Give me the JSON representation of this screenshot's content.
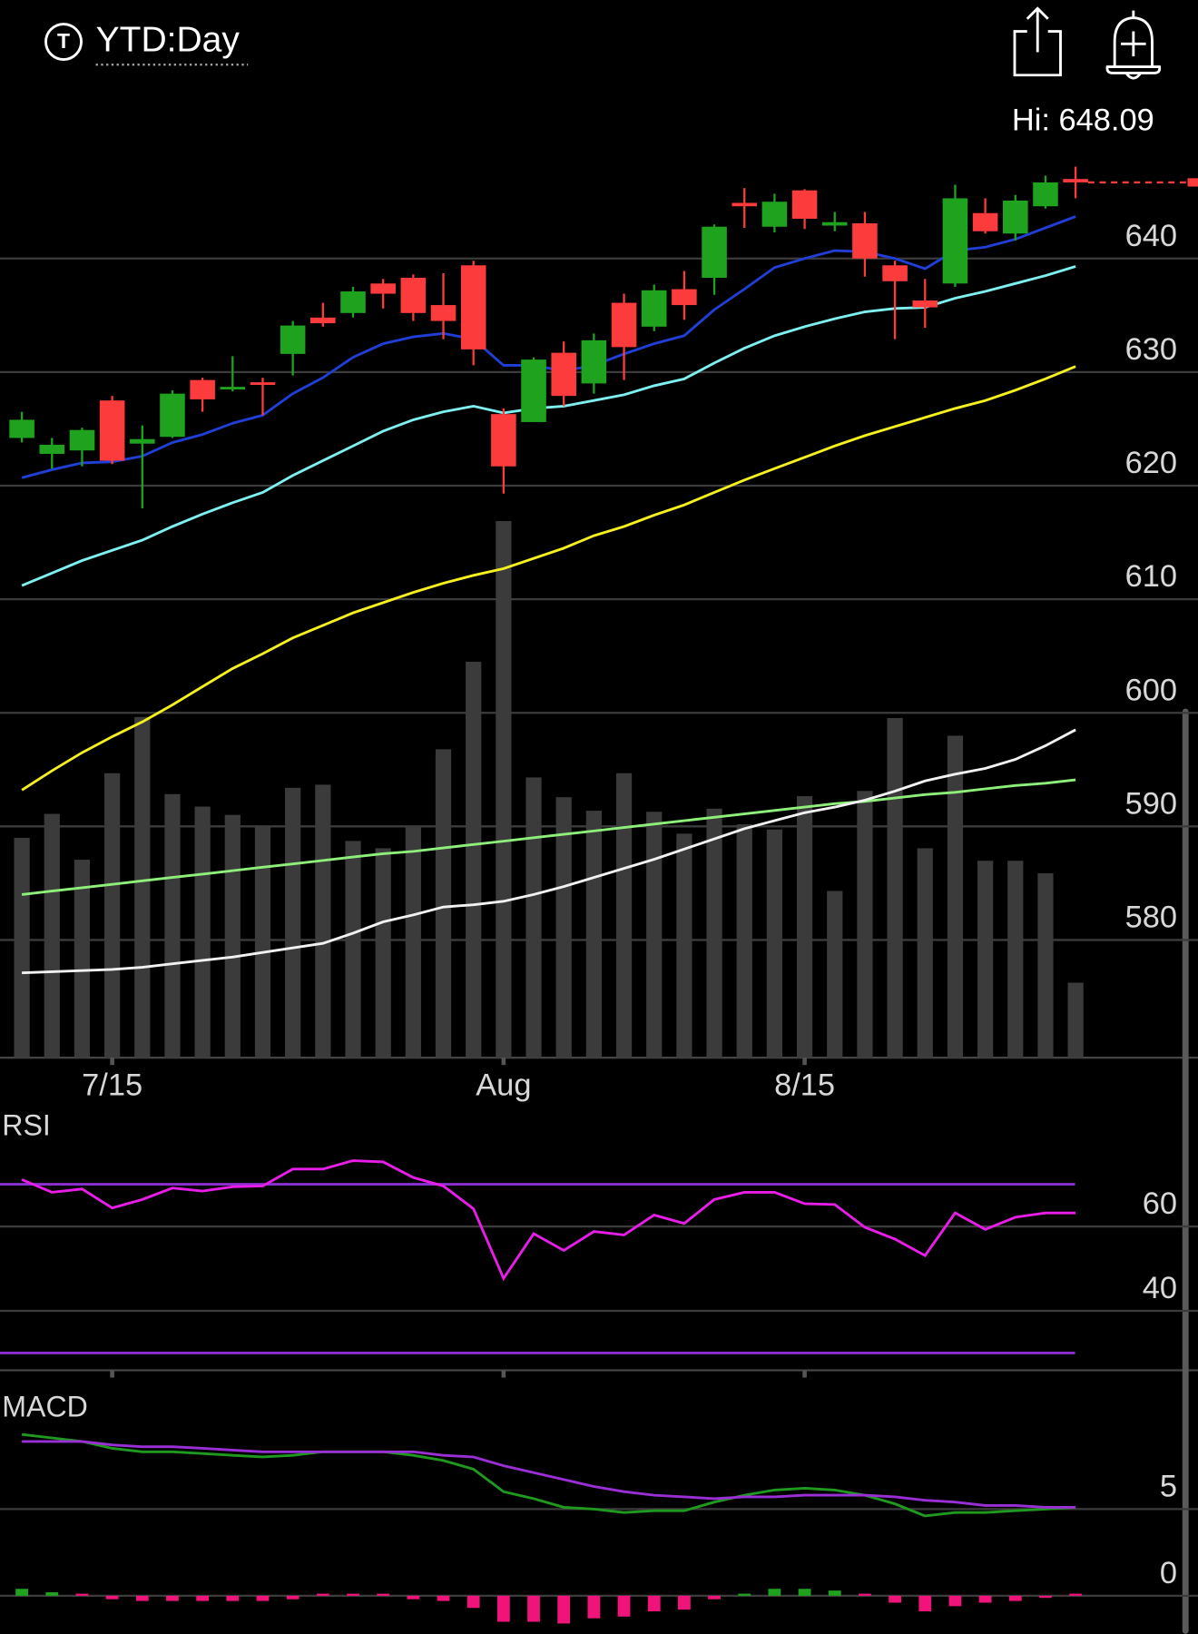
{
  "header": {
    "icon_text": "T",
    "title": "YTD:Day",
    "hi_label": "Hi: 648.09"
  },
  "chart_data": [
    {
      "type": "candlestick",
      "categories": [
        null,
        null,
        null,
        "7/15",
        null,
        null,
        null,
        null,
        null,
        null,
        null,
        null,
        null,
        null,
        null,
        null,
        "Aug",
        null,
        null,
        null,
        null,
        null,
        null,
        null,
        null,
        null,
        "8/15",
        null,
        null,
        null,
        null,
        null,
        null,
        null,
        null,
        null
      ],
      "open": [
        624.2,
        622.8,
        623.1,
        627.5,
        623.7,
        624.3,
        629.3,
        628.6,
        629.1,
        631.6,
        634.8,
        635.2,
        637.8,
        638.3,
        635.9,
        639.4,
        626.3,
        625.6,
        631.7,
        629.0,
        636.1,
        634.0,
        637.3,
        638.3,
        644.9,
        642.8,
        646.0,
        642.9,
        643.1,
        639.4,
        636.3,
        637.8,
        644.0,
        642.2,
        644.6,
        647.0
      ],
      "high": [
        626.5,
        624.2,
        625.1,
        627.9,
        625.3,
        628.4,
        629.5,
        631.4,
        629.5,
        634.5,
        636.1,
        637.5,
        638.2,
        638.6,
        638.7,
        639.8,
        626.8,
        631.3,
        632.7,
        633.4,
        636.9,
        637.7,
        638.9,
        643.0,
        646.2,
        645.7,
        646.1,
        644.1,
        644.1,
        639.8,
        638.2,
        646.5,
        645.3,
        645.6,
        647.3,
        648.09
      ],
      "low": [
        623.8,
        621.5,
        621.7,
        621.9,
        618.0,
        624.2,
        626.5,
        628.3,
        626.2,
        629.7,
        634.0,
        634.8,
        635.6,
        634.5,
        632.9,
        630.6,
        619.3,
        625.6,
        627.0,
        628.1,
        629.3,
        633.6,
        634.6,
        636.8,
        642.7,
        642.3,
        642.6,
        642.4,
        638.4,
        632.9,
        633.9,
        637.5,
        642.2,
        641.6,
        644.4,
        645.3
      ],
      "close": [
        625.8,
        623.6,
        624.9,
        622.2,
        624.1,
        628.1,
        627.6,
        628.7,
        628.9,
        634.1,
        634.3,
        637.1,
        636.9,
        635.2,
        634.5,
        632.0,
        621.7,
        631.1,
        627.9,
        632.8,
        632.2,
        637.2,
        635.9,
        642.8,
        644.6,
        645.0,
        643.5,
        643.2,
        640.0,
        638.0,
        635.7,
        645.3,
        642.4,
        645.1,
        646.7,
        646.7
      ],
      "up_color": "#1fa31f",
      "down_color": "#fc3c3c",
      "ylim": [
        570,
        650
      ],
      "yticks": [
        580,
        590,
        600,
        610,
        620,
        630,
        640
      ],
      "grid": true,
      "overlays": [
        {
          "color": "#1f3fd6",
          "values": [
            620.7,
            621.4,
            622.0,
            622.1,
            622.6,
            623.8,
            624.5,
            625.5,
            626.2,
            628.1,
            629.5,
            631.3,
            632.5,
            633.1,
            633.4,
            632.9,
            630.6,
            630.6,
            630.1,
            630.6,
            631.6,
            632.5,
            633.2,
            635.5,
            637.3,
            639.2,
            640.0,
            640.7,
            640.6,
            640.0,
            639.1,
            640.7,
            641.0,
            641.7,
            642.7,
            643.7
          ]
        },
        {
          "color": "#7ff0f0",
          "values": [
            611.2,
            612.3,
            613.4,
            614.3,
            615.2,
            616.4,
            617.5,
            618.5,
            619.4,
            620.9,
            622.2,
            623.5,
            624.8,
            625.8,
            626.5,
            627.0,
            626.4,
            626.8,
            627.0,
            627.5,
            628.0,
            628.8,
            629.4,
            630.8,
            632.1,
            633.2,
            634.0,
            634.7,
            635.3,
            635.6,
            635.7,
            636.5,
            637.1,
            637.8,
            638.5,
            639.3
          ]
        },
        {
          "color": "#f5f01e",
          "values": [
            593.2,
            594.9,
            596.5,
            597.9,
            599.2,
            600.7,
            602.3,
            603.9,
            605.2,
            606.6,
            607.7,
            608.8,
            609.7,
            610.6,
            611.4,
            612.1,
            612.7,
            613.6,
            614.5,
            615.6,
            616.4,
            617.4,
            618.3,
            619.4,
            620.5,
            621.5,
            622.5,
            623.5,
            624.4,
            625.2,
            626.0,
            626.8,
            627.5,
            628.4,
            629.4,
            630.5
          ]
        },
        {
          "color": "#8ef07a",
          "values": [
            584.0,
            584.3,
            584.6,
            584.9,
            585.2,
            585.5,
            585.8,
            586.1,
            586.4,
            586.7,
            587.0,
            587.3,
            587.6,
            587.8,
            588.1,
            588.4,
            588.7,
            589.0,
            589.3,
            589.6,
            589.9,
            590.2,
            590.5,
            590.8,
            591.1,
            591.4,
            591.7,
            592.0,
            592.2,
            592.5,
            592.8,
            593.0,
            593.3,
            593.6,
            593.8,
            594.1
          ]
        },
        {
          "color": "#f2f2f2",
          "values": [
            577.1,
            577.2,
            577.3,
            577.4,
            577.6,
            577.9,
            578.2,
            578.5,
            578.9,
            579.3,
            579.7,
            580.6,
            581.6,
            582.2,
            582.9,
            583.1,
            583.4,
            584.0,
            584.7,
            585.5,
            586.3,
            587.1,
            588.0,
            588.9,
            589.8,
            590.5,
            591.2,
            591.7,
            592.3,
            593.1,
            594.0,
            594.6,
            595.1,
            595.9,
            597.1,
            598.5
          ]
        }
      ],
      "volume": {
        "color": "#3b3b3b",
        "values": [
          211,
          234,
          190,
          273,
          327,
          253,
          241,
          233,
          221,
          259,
          262,
          208,
          201,
          222,
          296,
          380,
          515,
          269,
          250,
          237,
          273,
          236,
          215,
          239,
          224,
          219,
          251,
          160,
          256,
          326,
          201,
          309,
          189,
          189,
          177,
          72
        ]
      }
    },
    {
      "type": "line",
      "title": "RSI",
      "series": [
        {
          "color": "#e81ee8",
          "values": [
            71.1,
            68.1,
            68.9,
            64.4,
            66.4,
            69.1,
            68.4,
            69.4,
            69.6,
            73.6,
            73.6,
            75.6,
            75.3,
            71.6,
            69.6,
            64.2,
            47.7,
            58.3,
            54.3,
            58.8,
            58.0,
            62.7,
            60.7,
            66.4,
            68.1,
            68.1,
            65.4,
            65.2,
            59.8,
            57.0,
            53.1,
            63.2,
            59.3,
            62.2,
            63.2,
            63.2
          ]
        }
      ],
      "ylim": [
        25.9,
        88.9
      ],
      "yticks": [
        40,
        60
      ],
      "grid": true,
      "reference_lines": [
        30,
        70
      ],
      "reference_color": "#8a2fd0"
    },
    {
      "type": "line",
      "title": "MACD",
      "series": [
        {
          "color": "#1f9a1f",
          "values": [
            9.3,
            9.1,
            8.9,
            8.5,
            8.3,
            8.3,
            8.2,
            8.1,
            8.0,
            8.1,
            8.3,
            8.3,
            8.3,
            8.1,
            7.8,
            7.3,
            6.0,
            5.6,
            5.1,
            5.0,
            4.8,
            4.9,
            4.9,
            5.4,
            5.8,
            6.1,
            6.2,
            6.1,
            5.8,
            5.3,
            4.6,
            4.8,
            4.8,
            4.9,
            5.0,
            5.1
          ]
        },
        {
          "color": "#9a2fd6",
          "values": [
            8.9,
            8.9,
            8.9,
            8.7,
            8.6,
            8.6,
            8.5,
            8.4,
            8.3,
            8.3,
            8.3,
            8.3,
            8.3,
            8.3,
            8.1,
            8.0,
            7.5,
            7.1,
            6.7,
            6.3,
            6.0,
            5.8,
            5.7,
            5.6,
            5.7,
            5.7,
            5.8,
            5.8,
            5.8,
            5.7,
            5.5,
            5.4,
            5.2,
            5.2,
            5.1,
            5.1
          ]
        }
      ],
      "histogram": {
        "up_color": "#1fa31f",
        "down_color": "#f0147a",
        "values": [
          0.4,
          0.2,
          0.0,
          -0.2,
          -0.3,
          -0.3,
          -0.3,
          -0.3,
          -0.3,
          -0.2,
          0.0,
          0.0,
          0.0,
          -0.2,
          -0.3,
          -0.7,
          -1.5,
          -1.5,
          -1.6,
          -1.3,
          -1.2,
          -0.9,
          -0.8,
          -0.2,
          0.1,
          0.4,
          0.4,
          0.3,
          0.0,
          -0.4,
          -0.9,
          -0.6,
          -0.4,
          -0.3,
          -0.1,
          0.0
        ]
      },
      "ylim": [
        -2.2,
        12.1
      ],
      "yticks": [
        0,
        5
      ],
      "grid": true
    }
  ]
}
